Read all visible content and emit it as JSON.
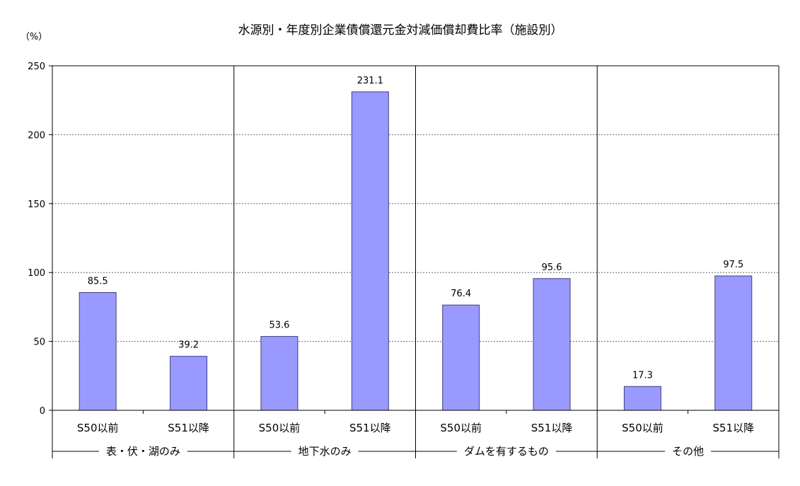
{
  "chart_data": {
    "type": "bar",
    "title": "水源別・年度別企業債償還元金対減価償却費比率（施設別）",
    "unit": "（%）",
    "ylim": [
      0,
      250
    ],
    "yticks": [
      0,
      50,
      100,
      150,
      200,
      250
    ],
    "grid": true,
    "colors": {
      "bar": "#9999ff",
      "bar_stroke": "#404080"
    },
    "groups": [
      {
        "label": "表・伏・湖のみ",
        "bars": [
          {
            "category": "S50以前",
            "value": 85.5,
            "label": "85.5"
          },
          {
            "category": "S51以降",
            "value": 39.2,
            "label": "39.2"
          }
        ]
      },
      {
        "label": "地下水のみ",
        "bars": [
          {
            "category": "S50以前",
            "value": 53.6,
            "label": "53.6"
          },
          {
            "category": "S51以降",
            "value": 231.1,
            "label": "231.1"
          }
        ]
      },
      {
        "label": "ダムを有するもの",
        "bars": [
          {
            "category": "S50以前",
            "value": 76.4,
            "label": "76.4"
          },
          {
            "category": "S51以降",
            "value": 95.6,
            "label": "95.6"
          }
        ]
      },
      {
        "label": "その他",
        "bars": [
          {
            "category": "S50以前",
            "value": 17.3,
            "label": "17.3"
          },
          {
            "category": "S51以降",
            "value": 97.5,
            "label": "97.5"
          }
        ]
      }
    ]
  }
}
